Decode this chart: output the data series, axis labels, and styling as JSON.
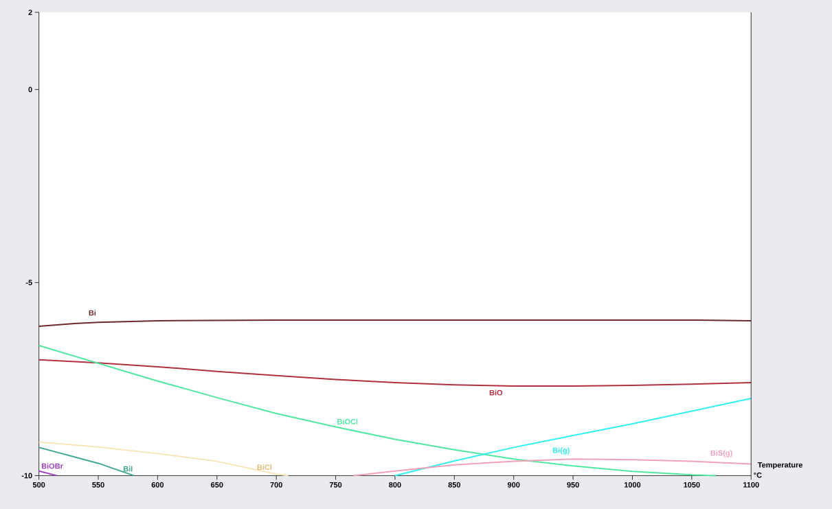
{
  "chart_data": {
    "type": "line",
    "xlabel": "Temperature °C",
    "xlim": [
      500,
      1100
    ],
    "ylim": [
      -10,
      2
    ],
    "xticks": [
      500,
      550,
      600,
      650,
      700,
      750,
      800,
      850,
      900,
      950,
      1000,
      1050,
      1100
    ],
    "yticks": [
      -10,
      -5,
      0,
      2
    ],
    "marker": "none",
    "line_style": "solid",
    "series": [
      {
        "name": "Bi",
        "color": "#6e2a2a",
        "x": [
          500,
          530,
          550,
          600,
          700,
          800,
          900,
          1000,
          1050,
          1100
        ],
        "values": [
          -6.13,
          -6.06,
          -6.03,
          -5.99,
          -5.97,
          -5.97,
          -5.97,
          -5.97,
          -5.97,
          -5.99
        ]
      },
      {
        "name": "BiO",
        "color": "#b03040",
        "x": [
          500,
          550,
          600,
          650,
          700,
          750,
          800,
          850,
          900,
          950,
          1000,
          1050,
          1100
        ],
        "values": [
          -7.0,
          -7.08,
          -7.18,
          -7.3,
          -7.41,
          -7.51,
          -7.59,
          -7.65,
          -7.68,
          -7.68,
          -7.66,
          -7.63,
          -7.59
        ]
      },
      {
        "name": "BiOCl",
        "color": "#50e8a0",
        "x": [
          500,
          550,
          600,
          650,
          700,
          750,
          800,
          850,
          900,
          950,
          1000,
          1050,
          1070
        ],
        "values": [
          -6.63,
          -7.09,
          -7.55,
          -7.98,
          -8.39,
          -8.74,
          -9.06,
          -9.33,
          -9.57,
          -9.75,
          -9.89,
          -9.98,
          -10
        ]
      },
      {
        "name": "Bi(g)",
        "color": "#30f0f0",
        "x": [
          800,
          850,
          900,
          950,
          1000,
          1050,
          1100
        ],
        "values": [
          -10,
          -9.62,
          -9.27,
          -8.96,
          -8.66,
          -8.33,
          -8.0
        ]
      },
      {
        "name": "BiS(g)",
        "color": "#f0a0b8",
        "x": [
          765,
          800,
          850,
          900,
          950,
          1000,
          1050,
          1100
        ],
        "values": [
          -10,
          -9.88,
          -9.72,
          -9.63,
          -9.57,
          -9.59,
          -9.63,
          -9.7
        ]
      },
      {
        "name": "BiCl",
        "color": "#f8e6b8",
        "x": [
          500,
          550,
          600,
          650,
          700,
          710
        ],
        "values": [
          -9.13,
          -9.26,
          -9.43,
          -9.63,
          -9.96,
          -10
        ]
      },
      {
        "name": "BiI",
        "color": "#40a890",
        "x": [
          500,
          550,
          580
        ],
        "values": [
          -9.27,
          -9.68,
          -10
        ]
      },
      {
        "name": "BiOBr",
        "color": "#a040c0",
        "x": [
          500,
          515
        ],
        "values": [
          -9.88,
          -10
        ]
      }
    ]
  }
}
